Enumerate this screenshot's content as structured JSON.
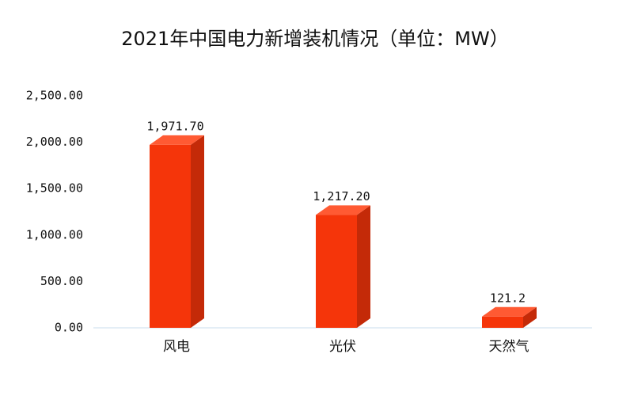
{
  "chart_data": {
    "type": "bar3d",
    "title": "2021年中国电力新增装机情况（单位：MW）",
    "categories": [
      "风电",
      "光伏",
      "天然气"
    ],
    "values": [
      1971.7,
      1217.2,
      121.2
    ],
    "value_labels": [
      "1,971.70",
      "1,217.20",
      "121.2"
    ],
    "color": "#f5350a",
    "ylim": [
      0,
      2500
    ],
    "yticks": [
      {
        "value": 0,
        "label": "0.00"
      },
      {
        "value": 500,
        "label": "500.00"
      },
      {
        "value": 1000,
        "label": "1,000.00"
      },
      {
        "value": 1500,
        "label": "1,500.00"
      },
      {
        "value": 2000,
        "label": "2,000.00"
      },
      {
        "value": 2500,
        "label": "2,500.00"
      }
    ]
  }
}
